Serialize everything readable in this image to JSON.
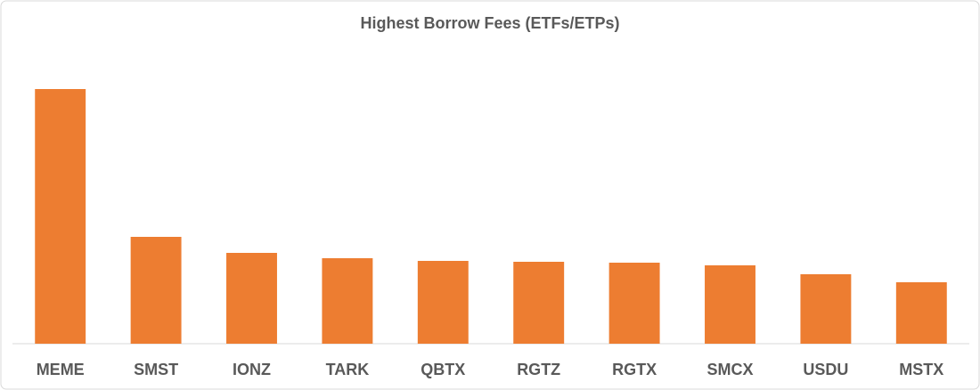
{
  "chart_data": {
    "type": "bar",
    "title": "Highest Borrow Fees (ETFs/ETPs)",
    "categories": [
      "MEME",
      "SMST",
      "IONZ",
      "TARK",
      "QBTX",
      "RGTZ",
      "RGTX",
      "SMCX",
      "USDU",
      "MSTX"
    ],
    "values": [
      286,
      120,
      102,
      96,
      93,
      92,
      91,
      88,
      78,
      69
    ],
    "color": "#ed7d31",
    "ylim": [
      0,
      300
    ]
  }
}
